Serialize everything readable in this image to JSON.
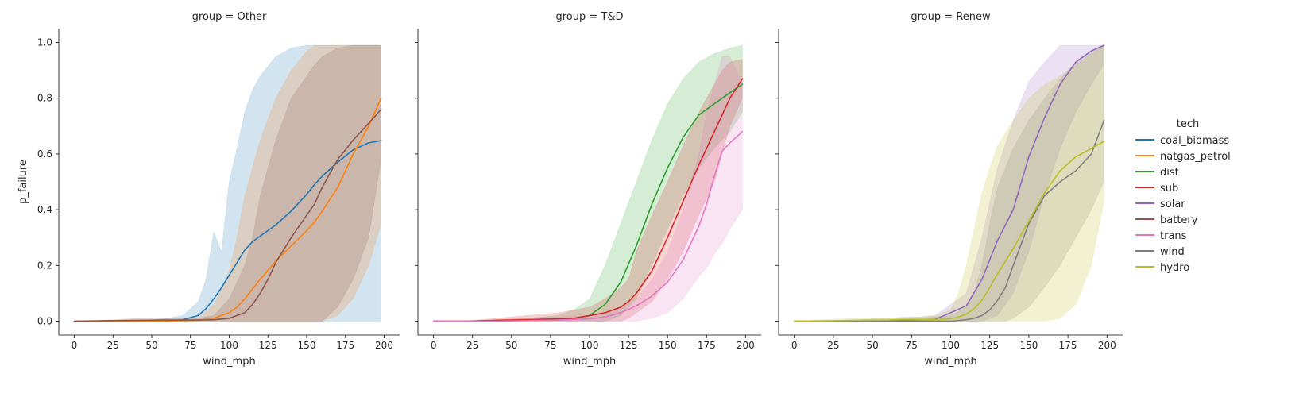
{
  "chart_data": {
    "type": "line",
    "layout": "facet-grid",
    "xlabel": "wind_mph",
    "ylabel": "p_failure",
    "xlim": [
      -10,
      210
    ],
    "ylim": [
      -0.05,
      1.05
    ],
    "x_ticks": [
      "0",
      "25",
      "50",
      "75",
      "100",
      "125",
      "150",
      "175",
      "200"
    ],
    "y_ticks": [
      "0.0",
      "0.2",
      "0.4",
      "0.6",
      "0.8",
      "1.0"
    ],
    "grid": false,
    "shared_y": true,
    "legend": {
      "title": "tech",
      "position": "right",
      "entries": [
        "coal_biomass",
        "natgas_petrol",
        "dist",
        "sub",
        "solar",
        "battery",
        "trans",
        "wind",
        "hydro"
      ]
    },
    "colors": {
      "coal_biomass": "#1f77b4",
      "natgas_petrol": "#ff7f0e",
      "dist": "#2ca02c",
      "sub": "#d62728",
      "solar": "#9467bd",
      "battery": "#8c564b",
      "trans": "#e377c2",
      "wind": "#7f7f7f",
      "hydro": "#bcbd22"
    },
    "panels": [
      {
        "title": "group = Other",
        "series": [
          {
            "name": "coal_biomass",
            "x": [
              0,
              20,
              40,
              60,
              70,
              80,
              85,
              90,
              95,
              100,
              105,
              110,
              115,
              120,
              130,
              140,
              150,
              155,
              160,
              170,
              180,
              190,
              198
            ],
            "y": [
              0.0,
              0.0,
              0.0,
              0.0,
              0.005,
              0.02,
              0.045,
              0.08,
              0.12,
              0.165,
              0.21,
              0.255,
              0.285,
              0.305,
              0.345,
              0.395,
              0.455,
              0.49,
              0.52,
              0.57,
              0.615,
              0.64,
              0.648
            ],
            "lower": [
              0.0,
              0.0,
              0.0,
              0.0,
              0.0,
              0.0,
              0.0,
              0.0,
              0.0,
              0.0,
              0.0,
              0.0,
              0.0,
              0.0,
              0.0,
              0.0,
              0.0,
              0.0,
              0.0,
              0.0,
              0.0,
              0.0,
              0.0
            ],
            "upper": [
              0.0,
              0.0,
              0.0,
              0.01,
              0.02,
              0.07,
              0.15,
              0.32,
              0.25,
              0.5,
              0.62,
              0.75,
              0.83,
              0.88,
              0.95,
              0.98,
              0.99,
              0.99,
              0.99,
              0.99,
              0.99,
              0.99,
              0.99
            ]
          },
          {
            "name": "natgas_petrol",
            "x": [
              0,
              20,
              40,
              60,
              80,
              90,
              100,
              105,
              110,
              120,
              130,
              140,
              150,
              155,
              160,
              170,
              180,
              190,
              198
            ],
            "y": [
              0.0,
              0.0,
              0.0,
              0.0,
              0.003,
              0.01,
              0.03,
              0.05,
              0.08,
              0.15,
              0.215,
              0.27,
              0.325,
              0.355,
              0.395,
              0.48,
              0.6,
              0.7,
              0.8
            ],
            "lower": [
              0.0,
              0.0,
              0.0,
              0.0,
              0.0,
              0.0,
              0.0,
              0.0,
              0.0,
              0.0,
              0.0,
              0.0,
              0.0,
              0.0,
              0.0,
              0.02,
              0.08,
              0.2,
              0.35
            ],
            "upper": [
              0.0,
              0.0,
              0.0,
              0.0,
              0.01,
              0.06,
              0.18,
              0.3,
              0.45,
              0.65,
              0.8,
              0.9,
              0.97,
              0.99,
              0.99,
              0.99,
              0.99,
              0.99,
              0.99
            ]
          },
          {
            "name": "battery",
            "x": [
              0,
              20,
              40,
              60,
              80,
              90,
              100,
              110,
              115,
              120,
              125,
              130,
              140,
              150,
              155,
              160,
              170,
              180,
              190,
              198
            ],
            "y": [
              0.0,
              0.002,
              0.003,
              0.004,
              0.004,
              0.005,
              0.01,
              0.03,
              0.06,
              0.1,
              0.15,
              0.21,
              0.3,
              0.38,
              0.42,
              0.48,
              0.58,
              0.65,
              0.71,
              0.76
            ],
            "lower": [
              0.0,
              0.0,
              0.0,
              0.0,
              0.0,
              0.0,
              0.0,
              0.0,
              0.0,
              0.0,
              0.0,
              0.0,
              0.0,
              0.0,
              0.0,
              0.0,
              0.05,
              0.15,
              0.3,
              0.58
            ],
            "upper": [
              0.0,
              0.0,
              0.01,
              0.01,
              0.01,
              0.02,
              0.08,
              0.2,
              0.3,
              0.45,
              0.55,
              0.65,
              0.8,
              0.88,
              0.92,
              0.95,
              0.98,
              0.99,
              0.99,
              0.99
            ]
          }
        ]
      },
      {
        "title": "group = T&D",
        "series": [
          {
            "name": "dist",
            "x": [
              0,
              20,
              40,
              60,
              80,
              90,
              100,
              110,
              120,
              130,
              140,
              150,
              160,
              170,
              180,
              190,
              198
            ],
            "y": [
              0.0,
              0.0,
              0.002,
              0.004,
              0.006,
              0.01,
              0.02,
              0.06,
              0.14,
              0.27,
              0.42,
              0.55,
              0.66,
              0.74,
              0.78,
              0.82,
              0.85
            ],
            "lower": [
              0.0,
              0.0,
              0.0,
              0.0,
              0.0,
              0.0,
              0.0,
              0.0,
              0.02,
              0.08,
              0.2,
              0.33,
              0.45,
              0.55,
              0.62,
              0.68,
              0.75
            ],
            "upper": [
              0.0,
              0.0,
              0.005,
              0.01,
              0.02,
              0.04,
              0.08,
              0.2,
              0.35,
              0.5,
              0.65,
              0.78,
              0.87,
              0.93,
              0.96,
              0.98,
              0.99
            ]
          },
          {
            "name": "sub",
            "x": [
              0,
              20,
              40,
              60,
              80,
              90,
              100,
              110,
              120,
              125,
              130,
              140,
              150,
              160,
              170,
              180,
              185,
              190,
              198
            ],
            "y": [
              0.0,
              0.0,
              0.003,
              0.005,
              0.008,
              0.01,
              0.02,
              0.03,
              0.05,
              0.07,
              0.1,
              0.18,
              0.3,
              0.43,
              0.56,
              0.68,
              0.74,
              0.8,
              0.87
            ],
            "lower": [
              0.0,
              0.0,
              0.0,
              0.0,
              0.0,
              0.0,
              0.0,
              0.0,
              0.0,
              0.01,
              0.03,
              0.07,
              0.15,
              0.25,
              0.38,
              0.5,
              0.6,
              0.7,
              0.8
            ],
            "upper": [
              0.0,
              0.0,
              0.01,
              0.02,
              0.03,
              0.04,
              0.05,
              0.08,
              0.12,
              0.15,
              0.25,
              0.38,
              0.5,
              0.63,
              0.75,
              0.85,
              0.9,
              0.93,
              0.94
            ]
          },
          {
            "name": "trans",
            "x": [
              0,
              20,
              40,
              60,
              80,
              100,
              110,
              120,
              130,
              140,
              150,
              160,
              170,
              175,
              180,
              185,
              190,
              198
            ],
            "y": [
              0.0,
              0.0,
              0.0,
              0.002,
              0.004,
              0.008,
              0.015,
              0.03,
              0.055,
              0.09,
              0.14,
              0.22,
              0.34,
              0.42,
              0.52,
              0.61,
              0.64,
              0.68
            ],
            "lower": [
              0.0,
              0.0,
              0.0,
              0.0,
              0.0,
              0.0,
              0.0,
              0.0,
              0.0,
              0.01,
              0.03,
              0.08,
              0.16,
              0.19,
              0.24,
              0.28,
              0.33,
              0.4
            ],
            "upper": [
              0.0,
              0.0,
              0.005,
              0.01,
              0.015,
              0.02,
              0.03,
              0.05,
              0.08,
              0.15,
              0.25,
              0.4,
              0.6,
              0.75,
              0.85,
              0.95,
              0.95,
              0.85
            ]
          }
        ]
      },
      {
        "title": "group = Renew",
        "series": [
          {
            "name": "solar",
            "x": [
              0,
              20,
              40,
              60,
              80,
              90,
              100,
              110,
              120,
              130,
              140,
              150,
              160,
              170,
              180,
              190,
              198
            ],
            "y": [
              0.0,
              0.0,
              0.0,
              0.002,
              0.004,
              0.006,
              0.03,
              0.055,
              0.15,
              0.29,
              0.4,
              0.59,
              0.73,
              0.85,
              0.93,
              0.97,
              0.99
            ],
            "lower": [
              0.0,
              0.0,
              0.0,
              0.0,
              0.0,
              0.0,
              0.0,
              0.0,
              0.0,
              0.02,
              0.1,
              0.25,
              0.45,
              0.62,
              0.75,
              0.85,
              0.92
            ],
            "upper": [
              0.0,
              0.0,
              0.005,
              0.01,
              0.015,
              0.02,
              0.06,
              0.1,
              0.3,
              0.55,
              0.72,
              0.86,
              0.93,
              0.99,
              0.99,
              0.99,
              0.99
            ]
          },
          {
            "name": "wind",
            "x": [
              0,
              20,
              40,
              60,
              80,
              100,
              110,
              115,
              120,
              125,
              130,
              135,
              140,
              150,
              160,
              170,
              180,
              190,
              198
            ],
            "y": [
              0.0,
              0.0,
              0.0,
              0.0,
              0.0,
              0.0,
              0.005,
              0.01,
              0.02,
              0.04,
              0.075,
              0.12,
              0.2,
              0.35,
              0.45,
              0.5,
              0.54,
              0.6,
              0.72
            ],
            "lower": [
              0.0,
              0.0,
              0.0,
              0.0,
              0.0,
              0.0,
              0.0,
              0.0,
              0.0,
              0.0,
              0.0,
              0.0,
              0.01,
              0.05,
              0.12,
              0.2,
              0.3,
              0.4,
              0.5
            ],
            "upper": [
              0.0,
              0.0,
              0.0,
              0.005,
              0.01,
              0.02,
              0.05,
              0.1,
              0.2,
              0.35,
              0.48,
              0.55,
              0.62,
              0.72,
              0.8,
              0.87,
              0.93,
              0.97,
              0.99
            ]
          },
          {
            "name": "hydro",
            "x": [
              0,
              20,
              40,
              60,
              70,
              80,
              90,
              100,
              105,
              110,
              115,
              120,
              125,
              130,
              140,
              150,
              160,
              170,
              180,
              190,
              198
            ],
            "y": [
              0.0,
              0.001,
              0.003,
              0.004,
              0.006,
              0.005,
              0.005,
              0.008,
              0.015,
              0.025,
              0.045,
              0.075,
              0.12,
              0.17,
              0.26,
              0.36,
              0.46,
              0.54,
              0.59,
              0.62,
              0.645
            ],
            "lower": [
              0.0,
              0.0,
              0.0,
              0.0,
              0.0,
              0.0,
              0.0,
              0.0,
              0.0,
              0.0,
              0.0,
              0.0,
              0.0,
              0.0,
              0.0,
              0.0,
              0.0,
              0.01,
              0.06,
              0.2,
              0.43
            ],
            "upper": [
              0.0,
              0.005,
              0.01,
              0.01,
              0.015,
              0.015,
              0.02,
              0.04,
              0.1,
              0.2,
              0.33,
              0.46,
              0.55,
              0.63,
              0.72,
              0.8,
              0.85,
              0.88,
              0.92,
              0.96,
              0.99
            ]
          }
        ]
      }
    ]
  }
}
